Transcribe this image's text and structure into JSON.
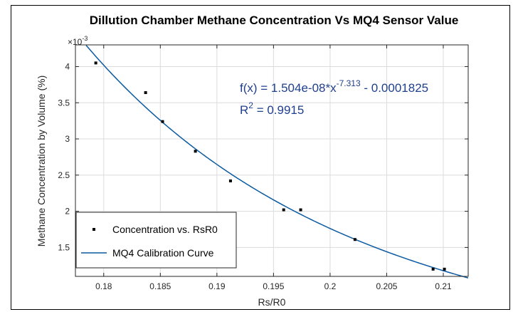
{
  "chart_data": {
    "type": "scatter",
    "title": "Dillution Chamber Methane Concentration Vs MQ4 Sensor Value",
    "xlabel": "Rs/R0",
    "ylabel": "Methane Concentration by Volume (%)",
    "y_exponent_label": "×10",
    "y_exponent_power": "-3",
    "xlim": [
      0.1775,
      0.2122
    ],
    "ylim": [
      1.1,
      4.3
    ],
    "x_ticks": [
      0.18,
      0.185,
      0.19,
      0.195,
      0.2,
      0.205,
      0.21
    ],
    "x_tick_labels": [
      "0.18",
      "0.185",
      "0.19",
      "0.195",
      "0.2",
      "0.205",
      "0.21"
    ],
    "y_ticks": [
      1.5,
      2,
      2.5,
      3,
      3.5,
      4
    ],
    "y_tick_labels": [
      "1.5",
      "2",
      "2.5",
      "3",
      "3.5",
      "4"
    ],
    "grid": true,
    "legend_position": "bottom-left",
    "series": [
      {
        "name": "Concentration vs. RsR0",
        "type": "scatter",
        "color": "#000000",
        "x": [
          0.1793,
          0.1837,
          0.1852,
          0.1881,
          0.1912,
          0.1959,
          0.1974,
          0.2022,
          0.2091,
          0.2101
        ],
        "y": [
          4.05,
          3.64,
          3.24,
          2.83,
          2.42,
          2.02,
          2.02,
          1.61,
          1.2,
          1.2
        ]
      },
      {
        "name": "MQ4 Calibration Curve",
        "type": "line",
        "color": "#0b5aa0",
        "model": {
          "a": 1.504e-08,
          "b": -7.313,
          "c": -0.0001825
        }
      }
    ],
    "annotations": {
      "fx_prefix": "f(x) = 1.504e-08*x",
      "fx_exponent": "-7.313",
      "fx_suffix": " - 0.0001825",
      "r2_prefix": "R",
      "r2_exponent": "2",
      "r2_suffix": " = 0.9915"
    }
  }
}
